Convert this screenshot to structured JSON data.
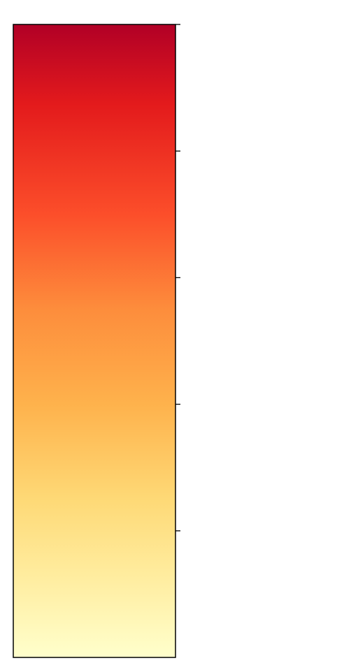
{
  "chart_data": {
    "type": "colorbar",
    "orientation": "vertical",
    "colormap": "YlOrRd",
    "color_stops": [
      {
        "offset": 0.0,
        "color": "#b10026"
      },
      {
        "offset": 0.125,
        "color": "#e31a1c"
      },
      {
        "offset": 0.3,
        "color": "#fc4e2a"
      },
      {
        "offset": 0.45,
        "color": "#fd8d3c"
      },
      {
        "offset": 0.6,
        "color": "#feb24c"
      },
      {
        "offset": 0.75,
        "color": "#fed976"
      },
      {
        "offset": 0.875,
        "color": "#ffeda0"
      },
      {
        "offset": 1.0,
        "color": "#ffffcc"
      }
    ],
    "tick_fractions": [
      1.0,
      0.8,
      0.6,
      0.4,
      0.2
    ],
    "tick_labels": [],
    "border_color": "#000000"
  }
}
